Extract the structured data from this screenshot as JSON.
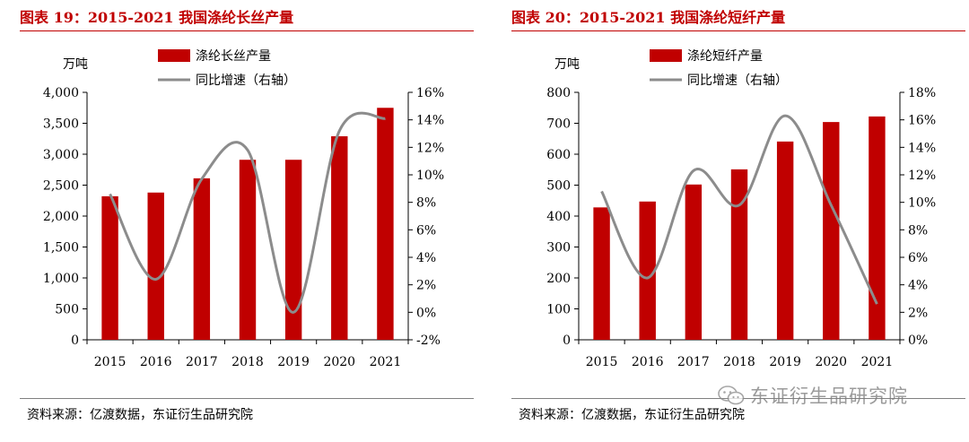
{
  "figures": [
    {
      "title": "图表 19：2015-2021 我国涤纶长丝产量",
      "source": "资料来源：亿渡数据，东证衍生品研究院",
      "left_unit": "万吨"
    },
    {
      "title": "图表 20：2015-2021 我国涤纶短纤产量",
      "source": "资料来源：亿渡数据，东证衍生品研究院",
      "left_unit": "万吨"
    }
  ],
  "watermark": {
    "text": "东证衍生品研究院",
    "icon": "wechat-icon"
  },
  "colors": {
    "bar": "#c00000",
    "line": "#8c8c8c",
    "title": "#c00000"
  },
  "chart_data": [
    {
      "type": "bar",
      "categories": [
        "2015",
        "2016",
        "2017",
        "2018",
        "2019",
        "2020",
        "2021"
      ],
      "series": [
        {
          "name": "涤纶长丝产量",
          "type": "bar",
          "axis": "left",
          "values": [
            2320,
            2380,
            2610,
            2910,
            2910,
            3290,
            3750
          ]
        },
        {
          "name": "同比增速（右轴）",
          "type": "line",
          "axis": "right",
          "values": [
            8.6,
            2.4,
            9.7,
            11.8,
            0.0,
            13.2,
            14.1
          ]
        }
      ],
      "ylim": [
        0,
        4000
      ],
      "yticks": [
        0,
        500,
        1000,
        1500,
        2000,
        2500,
        3000,
        3500,
        4000
      ],
      "ytick_labels": [
        "0",
        "500",
        "1,000",
        "1,500",
        "2,000",
        "2,500",
        "3,000",
        "3,500",
        "4,000"
      ],
      "y2lim": [
        -2,
        16
      ],
      "y2ticks": [
        -2,
        0,
        2,
        4,
        6,
        8,
        10,
        12,
        14,
        16
      ],
      "y2tick_labels": [
        "-2%",
        "0%",
        "2%",
        "4%",
        "6%",
        "8%",
        "10%",
        "12%",
        "14%",
        "16%"
      ],
      "legend": "top-left",
      "grid": false
    },
    {
      "type": "bar",
      "categories": [
        "2015",
        "2016",
        "2017",
        "2018",
        "2019",
        "2020",
        "2021"
      ],
      "series": [
        {
          "name": "涤纶短纤产量",
          "type": "bar",
          "axis": "left",
          "values": [
            428,
            447,
            502,
            551,
            641,
            704,
            722
          ]
        },
        {
          "name": "同比增速（右轴）",
          "type": "line",
          "axis": "right",
          "values": [
            10.8,
            4.5,
            12.3,
            9.8,
            16.3,
            9.8,
            2.6
          ]
        }
      ],
      "ylim": [
        0,
        800
      ],
      "yticks": [
        0,
        100,
        200,
        300,
        400,
        500,
        600,
        700,
        800
      ],
      "ytick_labels": [
        "0",
        "100",
        "200",
        "300",
        "400",
        "500",
        "600",
        "700",
        "800"
      ],
      "y2lim": [
        0,
        18
      ],
      "y2ticks": [
        0,
        2,
        4,
        6,
        8,
        10,
        12,
        14,
        16,
        18
      ],
      "y2tick_labels": [
        "0%",
        "2%",
        "4%",
        "6%",
        "8%",
        "10%",
        "12%",
        "14%",
        "16%",
        "18%"
      ],
      "legend": "top-left",
      "grid": false
    }
  ]
}
